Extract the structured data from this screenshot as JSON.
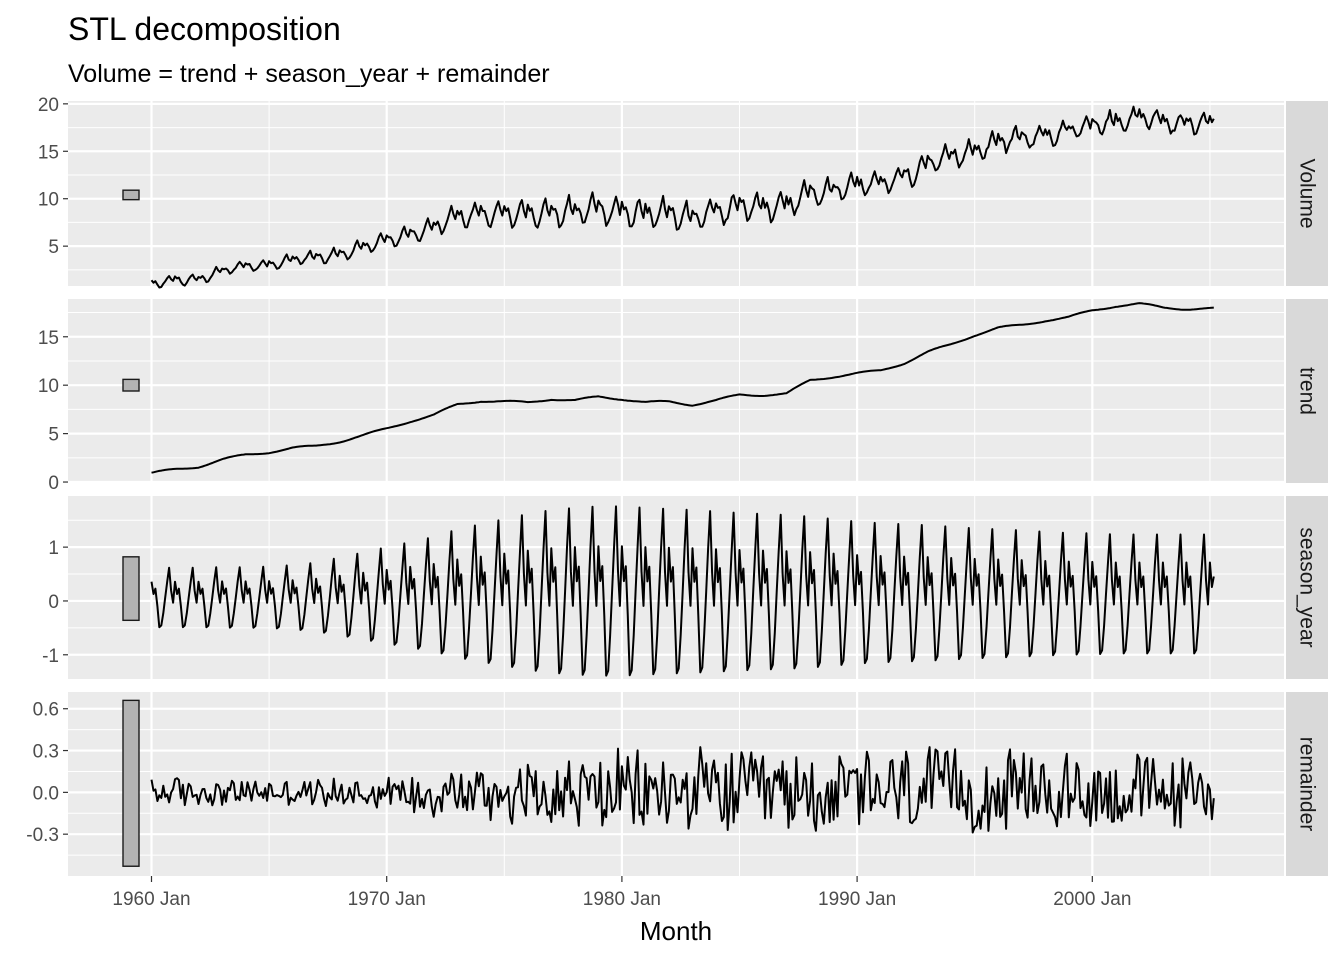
{
  "chart_data": {
    "type": "line",
    "title": "STL decomposition",
    "subtitle": "Volume = trend + season_year + remainder",
    "xlabel": "Month",
    "x_range": [
      "1960 Jan",
      "2005 Mar"
    ],
    "x_ticks": [
      {
        "label": "1960 Jan",
        "value": 1960
      },
      {
        "label": "1970 Jan",
        "value": 1970
      },
      {
        "label": "1980 Jan",
        "value": 1980
      },
      {
        "label": "1990 Jan",
        "value": 1990
      },
      {
        "label": "2000 Jan",
        "value": 2000
      }
    ],
    "colors": {
      "panel": "#ebebeb",
      "grid": "#ffffff",
      "strip": "#d9d9d9",
      "line": "#000000",
      "bar": "#b3b3b3"
    },
    "panels": [
      {
        "name": "Volume",
        "ylim": [
          0.8,
          20.3
        ],
        "y_ticks": [
          {
            "label": "5",
            "value": 5
          },
          {
            "label": "10",
            "value": 10
          },
          {
            "label": "15",
            "value": 15
          },
          {
            "label": "20",
            "value": 20
          }
        ],
        "range_bar": [
          9.9,
          10.9
        ],
        "line": {
          "x": [
            1960.0,
            1961.0,
            1962.0,
            1963.0,
            1964.0,
            1965.0,
            1966.0,
            1967.0,
            1968.0,
            1969.0,
            1970.0,
            1971.0,
            1972.0,
            1973.0,
            1974.0,
            1975.0,
            1976.0,
            1977.0,
            1978.0,
            1979.0,
            1980.0,
            1981.0,
            1982.0,
            1983.0,
            1984.0,
            1985.0,
            1986.0,
            1987.0,
            1988.0,
            1989.0,
            1990.0,
            1991.0,
            1992.0,
            1993.0,
            1994.0,
            1995.0,
            1996.0,
            1997.0,
            1998.0,
            1999.0,
            2000.0,
            2001.0,
            2002.0,
            2003.0,
            2004.0,
            2005.0
          ],
          "trend": [
            0.9,
            1.3,
            1.6,
            2.3,
            2.8,
            3.1,
            3.5,
            3.7,
            4.2,
            4.8,
            5.5,
            6.3,
            6.9,
            8.0,
            8.4,
            8.3,
            8.2,
            8.6,
            8.4,
            8.8,
            8.6,
            8.2,
            8.3,
            8.0,
            8.4,
            9.0,
            9.0,
            9.1,
            10.5,
            10.9,
            11.2,
            11.5,
            12.3,
            13.4,
            14.2,
            15.2,
            15.9,
            16.2,
            16.7,
            17.0,
            17.7,
            18.2,
            18.4,
            18.0,
            17.9,
            17.9
          ],
          "season_amp": [
            0.65,
            0.65,
            0.65,
            0.66,
            0.66,
            0.67,
            0.7,
            0.75,
            0.85,
            0.95,
            1.05,
            1.15,
            1.25,
            1.4,
            1.5,
            1.6,
            1.7,
            1.78,
            1.82,
            1.85,
            1.85,
            1.82,
            1.8,
            1.78,
            1.75,
            1.72,
            1.7,
            1.68,
            1.65,
            1.6,
            1.55,
            1.52,
            1.5,
            1.48,
            1.45,
            1.42,
            1.4,
            1.38,
            1.35,
            1.33,
            1.32,
            1.3,
            1.3,
            1.3,
            1.3,
            1.3
          ],
          "remainder_amp": [
            0.12,
            0.12,
            0.11,
            0.1,
            0.1,
            0.1,
            0.1,
            0.1,
            0.11,
            0.12,
            0.13,
            0.15,
            0.18,
            0.2,
            0.22,
            0.24,
            0.25,
            0.27,
            0.28,
            0.3,
            0.3,
            0.3,
            0.3,
            0.31,
            0.33,
            0.33,
            0.3,
            0.3,
            0.3,
            0.3,
            0.32,
            0.34,
            0.35,
            0.34,
            0.32,
            0.3,
            0.3,
            0.3,
            0.3,
            0.3,
            0.3,
            0.3,
            0.3,
            0.28,
            0.27,
            0.25
          ]
        }
      },
      {
        "name": "trend",
        "ylim": [
          -0.1,
          18.9
        ],
        "y_ticks": [
          {
            "label": "0",
            "value": 0
          },
          {
            "label": "5",
            "value": 5
          },
          {
            "label": "10",
            "value": 10
          },
          {
            "label": "15",
            "value": 15
          }
        ],
        "range_bar": [
          9.4,
          10.6
        ]
      },
      {
        "name": "season_year",
        "ylim": [
          -1.45,
          1.95
        ],
        "y_ticks": [
          {
            "label": "-1",
            "value": -1
          },
          {
            "label": "0",
            "value": 0
          },
          {
            "label": "1",
            "value": 1
          }
        ],
        "range_bar": [
          -0.36,
          0.82
        ]
      },
      {
        "name": "remainder",
        "ylim": [
          -0.6,
          0.72
        ],
        "y_ticks": [
          {
            "label": "-0.3",
            "value": -0.3
          },
          {
            "label": "0.0",
            "value": 0.0
          },
          {
            "label": "0.3",
            "value": 0.3
          },
          {
            "label": "0.6",
            "value": 0.6
          }
        ],
        "range_bar": [
          -0.53,
          0.66
        ]
      }
    ]
  }
}
